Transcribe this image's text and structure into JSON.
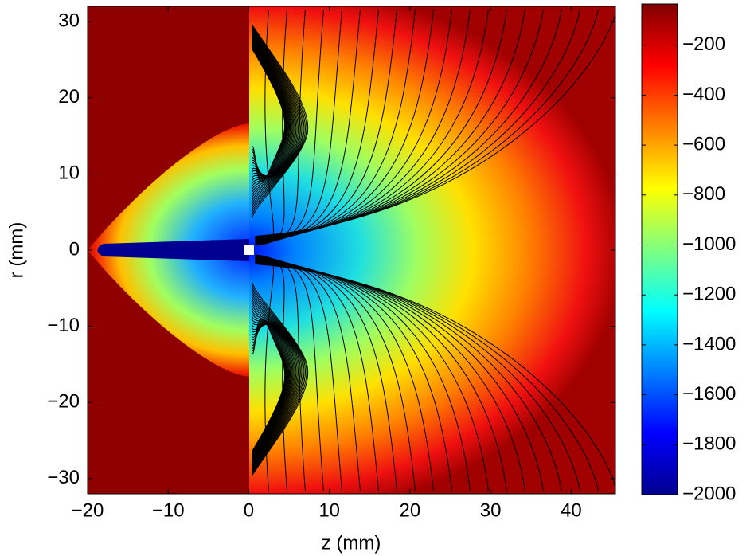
{
  "chart_data": {
    "type": "contour",
    "xlabel": "z (mm)",
    "ylabel": "r (mm)",
    "xlim": [
      -20,
      45.5
    ],
    "ylim": [
      -32,
      32
    ],
    "xticks": [
      {
        "value": -20,
        "label": "−20"
      },
      {
        "value": -10,
        "label": "−10"
      },
      0,
      10,
      20,
      30,
      40
    ],
    "yticks": [
      {
        "value": -30,
        "label": "−30"
      },
      {
        "value": -20,
        "label": "−20"
      },
      {
        "value": -10,
        "label": "−10"
      },
      0,
      10,
      20,
      30
    ],
    "colorbar": {
      "clim": [
        -2000,
        -35
      ],
      "colormap": "jet",
      "ticks": [
        {
          "value": -2000,
          "label": "−2000"
        },
        {
          "value": -1800,
          "label": "−1800"
        },
        {
          "value": -1600,
          "label": "−1600"
        },
        {
          "value": -1400,
          "label": "−1400"
        },
        {
          "value": -1200,
          "label": "−1200"
        },
        {
          "value": -1000,
          "label": "−1000"
        },
        {
          "value": -800,
          "label": "−800"
        },
        {
          "value": -600,
          "label": "−600"
        },
        {
          "value": -400,
          "label": "−400"
        },
        {
          "value": -200,
          "label": "−200"
        }
      ]
    }
  }
}
